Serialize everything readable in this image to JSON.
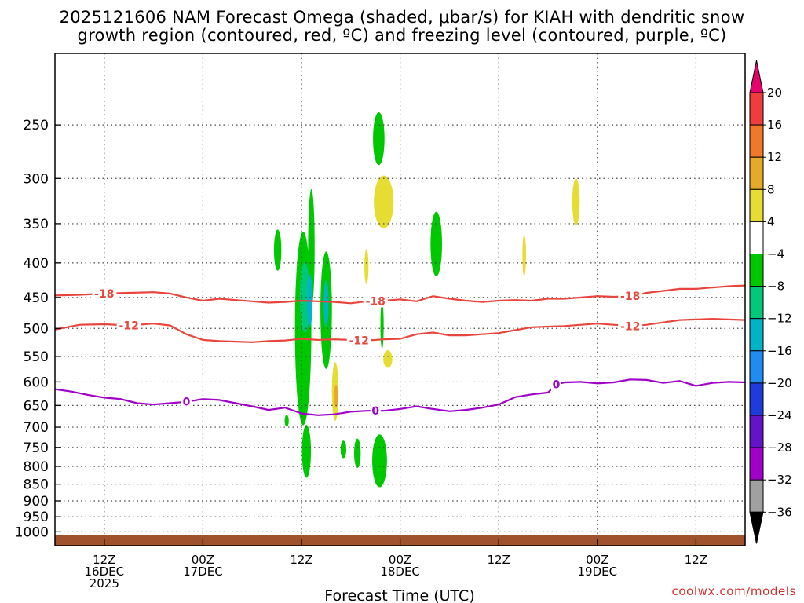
{
  "header": {
    "title_line1": "2025121606 NAM Forecast Omega (shaded, μbar/s) for KIAH with dendritic snow",
    "title_line2": "growth region (contoured, red, ºC) and freezing level (contoured, purple, ºC)"
  },
  "credit": "coolwx.com/models",
  "chart_data": {
    "type": "heatmap",
    "xlabel": "Forecast Time (UTC)",
    "ylabel": "",
    "x_unit": "hours since 2025-12-16 06Z",
    "xlim": [
      0,
      84
    ],
    "ylim_hpa": [
      1000,
      200
    ],
    "y_scale": "log",
    "grid": true,
    "x_ticks": [
      {
        "hour": 6,
        "lines": [
          "12Z",
          "16DEC",
          "2025"
        ]
      },
      {
        "hour": 18,
        "lines": [
          "00Z",
          "17DEC"
        ]
      },
      {
        "hour": 30,
        "lines": [
          "12Z"
        ]
      },
      {
        "hour": 42,
        "lines": [
          "00Z",
          "18DEC"
        ]
      },
      {
        "hour": 54,
        "lines": [
          "12Z"
        ]
      },
      {
        "hour": 66,
        "lines": [
          "00Z",
          "19DEC"
        ]
      },
      {
        "hour": 78,
        "lines": [
          "12Z"
        ]
      }
    ],
    "y_ticks": [
      250,
      300,
      350,
      400,
      450,
      500,
      550,
      600,
      650,
      700,
      750,
      800,
      850,
      900,
      950,
      1000
    ],
    "colorbar": {
      "labels": [
        "20",
        "16",
        "12",
        "8",
        "4",
        "−4",
        "−8",
        "−12",
        "−16",
        "−20",
        "−24",
        "−28",
        "−32",
        "−36"
      ],
      "bins": [
        {
          "min": 16,
          "max": 20,
          "color": "#f03c3c"
        },
        {
          "min": 12,
          "max": 16,
          "color": "#f07828"
        },
        {
          "min": 8,
          "max": 12,
          "color": "#e6aa28"
        },
        {
          "min": 4,
          "max": 8,
          "color": "#e6dc32"
        },
        {
          "min": -4,
          "max": 4,
          "color": "#ffffff"
        },
        {
          "min": -8,
          "max": -4,
          "color": "#00c800"
        },
        {
          "min": -12,
          "max": -8,
          "color": "#00c878"
        },
        {
          "min": -16,
          "max": -12,
          "color": "#00b4c8"
        },
        {
          "min": -20,
          "max": -16,
          "color": "#1e8cf0"
        },
        {
          "min": -24,
          "max": -20,
          "color": "#1e3cdc"
        },
        {
          "min": -28,
          "max": -24,
          "color": "#6414c8"
        },
        {
          "min": -32,
          "max": -28,
          "color": "#a000c8"
        },
        {
          "min": -36,
          "max": -32,
          "color": "#a0a0a0"
        }
      ],
      "over_color": "#e6006e",
      "under_color": "#000000"
    },
    "contours": [
      {
        "label": "-18",
        "color": "#e8463c",
        "label_hours": [
          6,
          39,
          70
        ],
        "points": [
          [
            0,
            447
          ],
          [
            3,
            446
          ],
          [
            6,
            444
          ],
          [
            9,
            443
          ],
          [
            12,
            442
          ],
          [
            14,
            444
          ],
          [
            16,
            450
          ],
          [
            18,
            455
          ],
          [
            20,
            452
          ],
          [
            22,
            454
          ],
          [
            24,
            456
          ],
          [
            26,
            458
          ],
          [
            28,
            457
          ],
          [
            30,
            455
          ],
          [
            32,
            456
          ],
          [
            34,
            457
          ],
          [
            36,
            459
          ],
          [
            38,
            456
          ],
          [
            40,
            455
          ],
          [
            42,
            453
          ],
          [
            44,
            456
          ],
          [
            46,
            448
          ],
          [
            48,
            452
          ],
          [
            50,
            455
          ],
          [
            52,
            457
          ],
          [
            54,
            455
          ],
          [
            56,
            454
          ],
          [
            58,
            455
          ],
          [
            60,
            452
          ],
          [
            62,
            452
          ],
          [
            64,
            450
          ],
          [
            66,
            448
          ],
          [
            68,
            449
          ],
          [
            70,
            448
          ],
          [
            72,
            443
          ],
          [
            74,
            440
          ],
          [
            76,
            437
          ],
          [
            78,
            437
          ],
          [
            80,
            435
          ],
          [
            82,
            433
          ],
          [
            84,
            432
          ]
        ]
      },
      {
        "label": "-12",
        "color": "#e8463c",
        "label_hours": [
          9,
          37,
          70
        ],
        "points": [
          [
            0,
            502
          ],
          [
            3,
            494
          ],
          [
            6,
            493
          ],
          [
            9,
            495
          ],
          [
            12,
            492
          ],
          [
            14,
            495
          ],
          [
            16,
            510
          ],
          [
            18,
            520
          ],
          [
            20,
            522
          ],
          [
            22,
            523
          ],
          [
            24,
            524
          ],
          [
            26,
            522
          ],
          [
            28,
            521
          ],
          [
            30,
            518
          ],
          [
            32,
            520
          ],
          [
            34,
            519
          ],
          [
            36,
            520
          ],
          [
            38,
            521
          ],
          [
            40,
            519
          ],
          [
            42,
            518
          ],
          [
            44,
            510
          ],
          [
            46,
            507
          ],
          [
            48,
            512
          ],
          [
            50,
            512
          ],
          [
            52,
            510
          ],
          [
            54,
            508
          ],
          [
            56,
            503
          ],
          [
            58,
            498
          ],
          [
            60,
            497
          ],
          [
            62,
            496
          ],
          [
            64,
            494
          ],
          [
            66,
            492
          ],
          [
            68,
            494
          ],
          [
            70,
            496
          ],
          [
            72,
            494
          ],
          [
            74,
            490
          ],
          [
            76,
            486
          ],
          [
            78,
            485
          ],
          [
            80,
            484
          ],
          [
            82,
            485
          ],
          [
            84,
            486
          ]
        ]
      },
      {
        "label": "0",
        "color": "#a000c8",
        "label_hours": [
          16,
          39,
          61
        ],
        "points": [
          [
            0,
            615
          ],
          [
            2,
            620
          ],
          [
            4,
            627
          ],
          [
            6,
            633
          ],
          [
            8,
            636
          ],
          [
            10,
            645
          ],
          [
            12,
            648
          ],
          [
            14,
            645
          ],
          [
            16,
            642
          ],
          [
            18,
            636
          ],
          [
            20,
            638
          ],
          [
            22,
            645
          ],
          [
            24,
            652
          ],
          [
            26,
            660
          ],
          [
            28,
            655
          ],
          [
            30,
            668
          ],
          [
            32,
            672
          ],
          [
            34,
            670
          ],
          [
            36,
            664
          ],
          [
            38,
            662
          ],
          [
            40,
            662
          ],
          [
            42,
            658
          ],
          [
            44,
            652
          ],
          [
            46,
            658
          ],
          [
            48,
            663
          ],
          [
            50,
            660
          ],
          [
            52,
            655
          ],
          [
            54,
            648
          ],
          [
            56,
            632
          ],
          [
            58,
            626
          ],
          [
            60,
            622
          ],
          [
            61,
            605
          ],
          [
            62,
            601
          ],
          [
            64,
            600
          ],
          [
            66,
            603
          ],
          [
            68,
            601
          ],
          [
            70,
            595
          ],
          [
            72,
            596
          ],
          [
            74,
            602
          ],
          [
            76,
            598
          ],
          [
            78,
            608
          ],
          [
            80,
            602
          ],
          [
            82,
            600
          ],
          [
            84,
            601
          ]
        ]
      }
    ],
    "cells": [
      {
        "h": 27.1,
        "p": 383,
        "w": 0.45,
        "ph": 0.07,
        "v": -6
      },
      {
        "h": 28.2,
        "p": 685,
        "w": 0.25,
        "ph": 0.02,
        "v": -6
      },
      {
        "h": 30.2,
        "p": 500,
        "w": 1.0,
        "ph": 0.33,
        "v": -6
      },
      {
        "h": 30.4,
        "p": 450,
        "w": 0.6,
        "ph": 0.12,
        "v": -10
      },
      {
        "h": 30.6,
        "p": 760,
        "w": 0.55,
        "ph": 0.09,
        "v": -6
      },
      {
        "h": 31.2,
        "p": 380,
        "w": 0.4,
        "ph": 0.2,
        "v": -6
      },
      {
        "h": 31.0,
        "p": 455,
        "w": 0.35,
        "ph": 0.09,
        "v": -14
      },
      {
        "h": 33.0,
        "p": 470,
        "w": 0.7,
        "ph": 0.2,
        "v": -6
      },
      {
        "h": 33.0,
        "p": 460,
        "w": 0.3,
        "ph": 0.08,
        "v": -14
      },
      {
        "h": 34.1,
        "p": 620,
        "w": 0.4,
        "ph": 0.1,
        "v": 6
      },
      {
        "h": 34.2,
        "p": 630,
        "w": 0.22,
        "ph": 0.04,
        "v": 10
      },
      {
        "h": 35.1,
        "p": 755,
        "w": 0.35,
        "ph": 0.03,
        "v": -6
      },
      {
        "h": 36.8,
        "p": 765,
        "w": 0.4,
        "ph": 0.05,
        "v": -6
      },
      {
        "h": 37.9,
        "p": 405,
        "w": 0.25,
        "ph": 0.06,
        "v": 6
      },
      {
        "h": 39.4,
        "p": 262,
        "w": 0.7,
        "ph": 0.09,
        "v": -6
      },
      {
        "h": 39.5,
        "p": 785,
        "w": 0.9,
        "ph": 0.09,
        "v": -6
      },
      {
        "h": 39.8,
        "p": 495,
        "w": 0.2,
        "ph": 0.08,
        "v": -6
      },
      {
        "h": 40.0,
        "p": 325,
        "w": 1.2,
        "ph": 0.09,
        "v": 6
      },
      {
        "h": 40.5,
        "p": 555,
        "w": 0.55,
        "ph": 0.03,
        "v": 6
      },
      {
        "h": 46.4,
        "p": 375,
        "w": 0.7,
        "ph": 0.11,
        "v": -6
      },
      {
        "h": 57.1,
        "p": 390,
        "w": 0.22,
        "ph": 0.07,
        "v": 6
      },
      {
        "h": 63.4,
        "p": 325,
        "w": 0.45,
        "ph": 0.08,
        "v": 6
      }
    ],
    "terrain_color": "#a0522d"
  }
}
